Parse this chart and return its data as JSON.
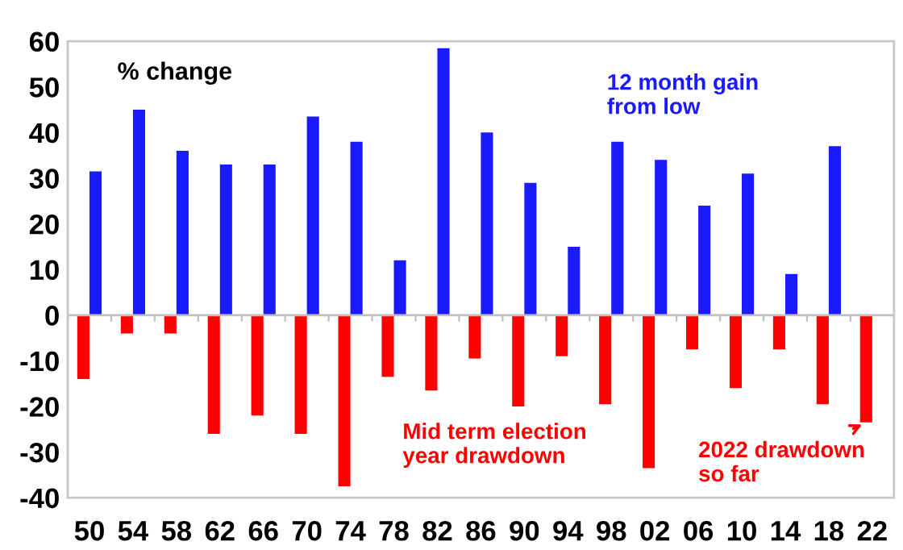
{
  "chart_data": {
    "type": "bar",
    "title": "% change",
    "categories": [
      "50",
      "54",
      "58",
      "62",
      "66",
      "70",
      "74",
      "78",
      "82",
      "86",
      "90",
      "94",
      "98",
      "02",
      "06",
      "10",
      "14",
      "18",
      "22"
    ],
    "series": [
      {
        "color": "#ff0000",
        "values": [
          -14,
          -4,
          -4,
          -26,
          -22,
          -26,
          -37.5,
          -13.5,
          -16.5,
          -9.5,
          -20,
          -9,
          -19.5,
          -33.5,
          -7.5,
          -16,
          -7.5,
          -19.5,
          -23.5
        ]
      },
      {
        "color": "#1a1aff",
        "values": [
          31.5,
          45,
          36,
          33,
          33,
          43.5,
          38,
          12,
          58.5,
          40,
          29,
          15,
          38,
          34,
          24,
          31,
          9,
          37,
          null
        ]
      }
    ],
    "annotations": [
      "12 month gain\nfrom low",
      "Mid term election\nyear drawdown",
      {
        "text": "2022 drawdown\nso far",
        "x": "22",
        "y": -23.5
      }
    ],
    "ref_lines": [
      {
        "axis": "y",
        "value": 0,
        "color": "#c0c0c0"
      }
    ],
    "ylim": [
      -40,
      60
    ],
    "yticks": [
      -40,
      -30,
      -20,
      -10,
      0,
      10,
      20,
      30,
      40,
      50,
      60
    ],
    "grid": false,
    "legend": false
  }
}
